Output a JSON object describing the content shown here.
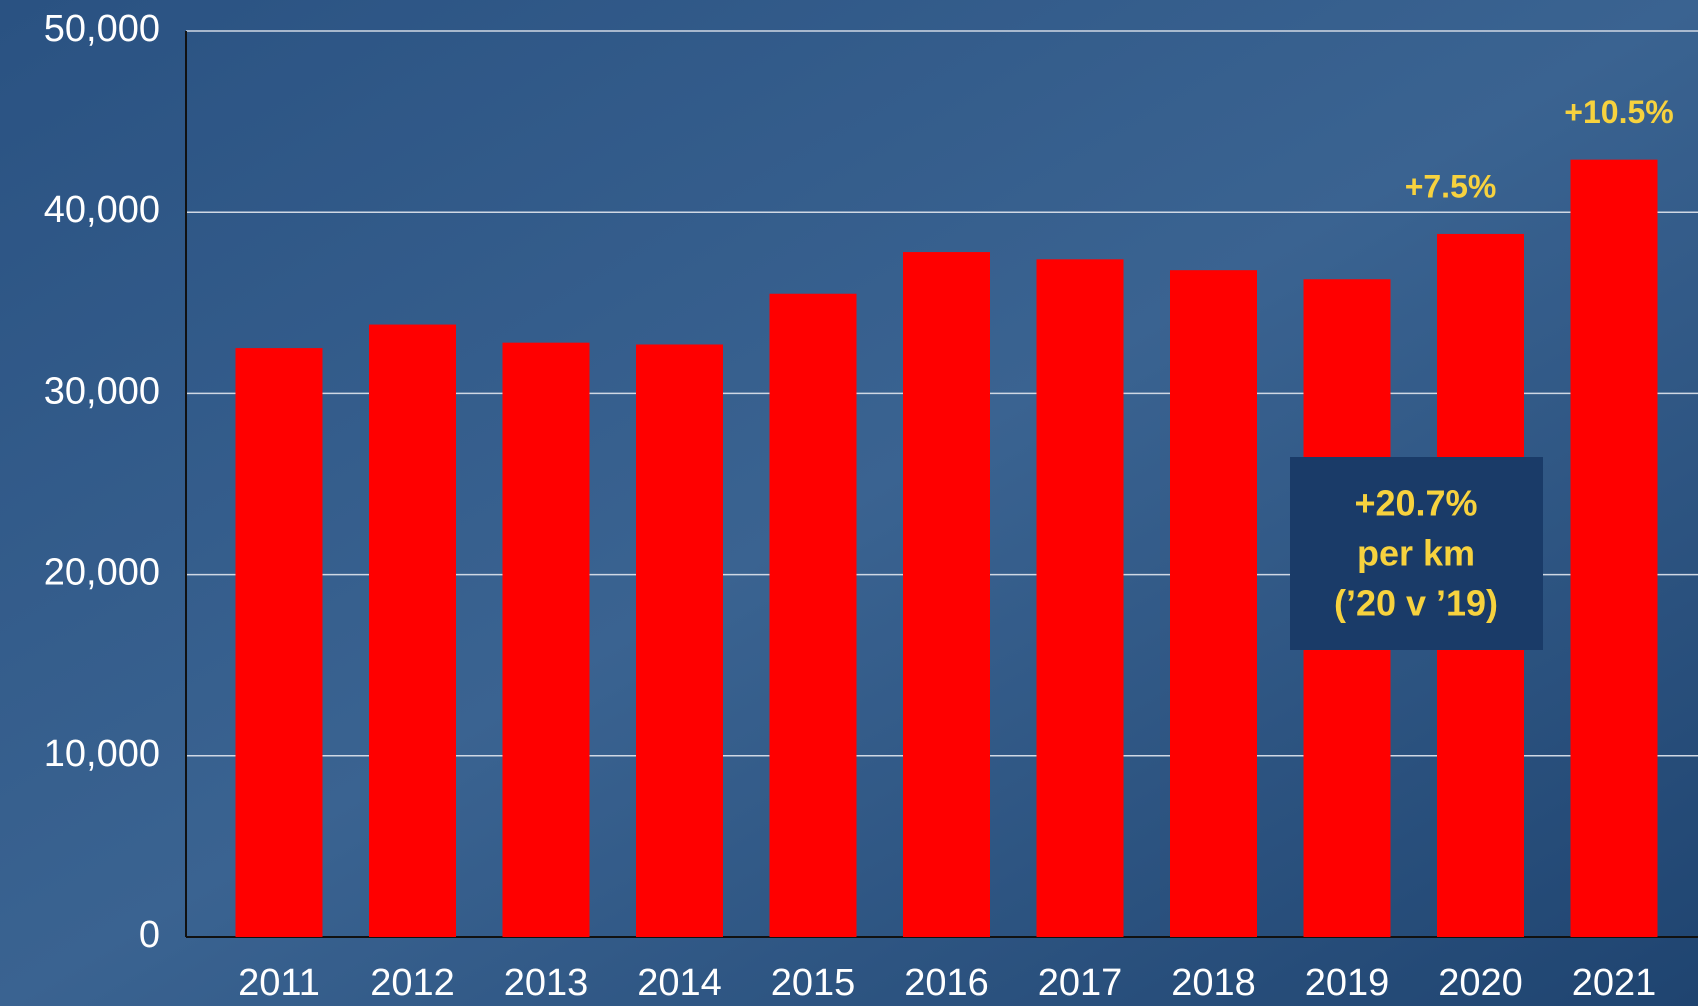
{
  "chart_data": {
    "type": "bar",
    "categories": [
      "2011",
      "2012",
      "2013",
      "2014",
      "2015",
      "2016",
      "2017",
      "2018",
      "2019",
      "2020",
      "2021"
    ],
    "values": [
      32500,
      33800,
      32800,
      32700,
      35500,
      37800,
      37400,
      36800,
      36300,
      38800,
      42900
    ],
    "color": "#ff0000",
    "ylim": [
      0,
      50000
    ],
    "yticks": [
      0,
      {
        "value": 10000,
        "label": "10,000"
      },
      {
        "value": 20000,
        "label": "20,000"
      },
      {
        "value": 30000,
        "label": "30,000"
      },
      {
        "value": 40000,
        "label": "40,000"
      },
      {
        "value": 50000,
        "label": "50,000"
      }
    ],
    "grid": true,
    "annotations": [
      "+7.5%",
      "+10.5%"
    ],
    "note": [
      "+20.7%",
      "per km",
      "(’20 v ’19)"
    ]
  }
}
